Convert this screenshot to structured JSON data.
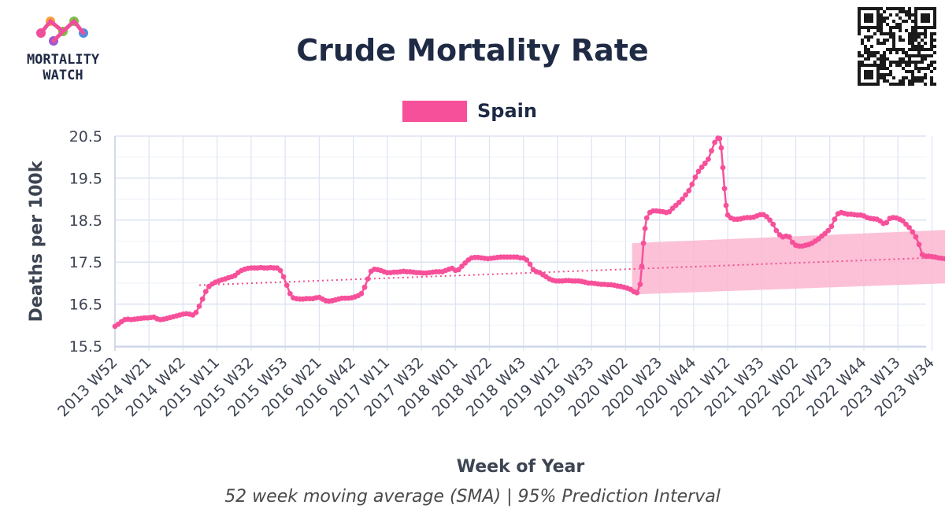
{
  "brand": {
    "line1": "MORTALITY",
    "line2": "WATCH",
    "colors": [
      "#f04e9b",
      "#f7a13a",
      "#7ac142",
      "#4a90e2",
      "#9b59d0"
    ]
  },
  "qr_code": {
    "label": "qr-code"
  },
  "colors": {
    "series": "#f7509a",
    "trend": "#f04e8e",
    "band": "#fbb6d0",
    "grid": "#dde3f3",
    "text": "#1f2a44"
  },
  "chart_data": {
    "type": "line",
    "title": "Crude Mortality Rate",
    "subtitle": "52 week moving average (SMA) | 95% Prediction Interval",
    "xlabel": "Week of Year",
    "ylabel": "Deaths per 100k",
    "ylim": [
      15.3,
      20.6
    ],
    "yticks": [
      15.5,
      16.5,
      17.5,
      18.5,
      19.5,
      20.5
    ],
    "x_range_weeks": [
      0,
      506
    ],
    "xticks": [
      {
        "label": "2013 W52",
        "week": 0
      },
      {
        "label": "2014 W21",
        "week": 21
      },
      {
        "label": "2014 W42",
        "week": 42
      },
      {
        "label": "2015 W11",
        "week": 63
      },
      {
        "label": "2015 W32",
        "week": 84
      },
      {
        "label": "2015 W53",
        "week": 105
      },
      {
        "label": "2016 W21",
        "week": 126
      },
      {
        "label": "2016 W42",
        "week": 147
      },
      {
        "label": "2017 W11",
        "week": 168
      },
      {
        "label": "2017 W32",
        "week": 189
      },
      {
        "label": "2018 W01",
        "week": 210
      },
      {
        "label": "2018 W22",
        "week": 231
      },
      {
        "label": "2018 W43",
        "week": 252
      },
      {
        "label": "2019 W12",
        "week": 273
      },
      {
        "label": "2019 W33",
        "week": 294
      },
      {
        "label": "2020 W02",
        "week": 315
      },
      {
        "label": "2020 W23",
        "week": 336
      },
      {
        "label": "2020 W44",
        "week": 357
      },
      {
        "label": "2021 W12",
        "week": 378
      },
      {
        "label": "2021 W33",
        "week": 399
      },
      {
        "label": "2022 W02",
        "week": 420
      },
      {
        "label": "2022 W23",
        "week": 441
      },
      {
        "label": "2022 W44",
        "week": 462
      },
      {
        "label": "2023 W13",
        "week": 483
      },
      {
        "label": "2023 W34",
        "week": 504
      }
    ],
    "series": [
      {
        "name": "Spain",
        "type": "line",
        "points": [
          [
            0,
            15.97
          ],
          [
            2,
            16.02
          ],
          [
            4,
            16.08
          ],
          [
            6,
            16.13
          ],
          [
            8,
            16.14
          ],
          [
            10,
            16.13
          ],
          [
            12,
            16.14
          ],
          [
            14,
            16.15
          ],
          [
            16,
            16.16
          ],
          [
            18,
            16.17
          ],
          [
            20,
            16.17
          ],
          [
            22,
            16.18
          ],
          [
            24,
            16.19
          ],
          [
            26,
            16.15
          ],
          [
            28,
            16.13
          ],
          [
            30,
            16.14
          ],
          [
            32,
            16.16
          ],
          [
            34,
            16.18
          ],
          [
            36,
            16.2
          ],
          [
            38,
            16.22
          ],
          [
            40,
            16.24
          ],
          [
            42,
            16.26
          ],
          [
            44,
            16.27
          ],
          [
            46,
            16.26
          ],
          [
            48,
            16.24
          ],
          [
            50,
            16.3
          ],
          [
            52,
            16.45
          ],
          [
            54,
            16.62
          ],
          [
            56,
            16.8
          ],
          [
            58,
            16.92
          ],
          [
            60,
            16.98
          ],
          [
            62,
            17.02
          ],
          [
            64,
            17.05
          ],
          [
            66,
            17.08
          ],
          [
            68,
            17.1
          ],
          [
            70,
            17.13
          ],
          [
            72,
            17.15
          ],
          [
            74,
            17.18
          ],
          [
            76,
            17.25
          ],
          [
            78,
            17.3
          ],
          [
            80,
            17.33
          ],
          [
            82,
            17.35
          ],
          [
            84,
            17.36
          ],
          [
            86,
            17.36
          ],
          [
            88,
            17.36
          ],
          [
            90,
            17.37
          ],
          [
            92,
            17.36
          ],
          [
            94,
            17.36
          ],
          [
            96,
            17.37
          ],
          [
            98,
            17.36
          ],
          [
            100,
            17.36
          ],
          [
            102,
            17.3
          ],
          [
            104,
            17.15
          ],
          [
            106,
            16.95
          ],
          [
            108,
            16.75
          ],
          [
            110,
            16.65
          ],
          [
            112,
            16.63
          ],
          [
            114,
            16.62
          ],
          [
            116,
            16.62
          ],
          [
            118,
            16.63
          ],
          [
            120,
            16.63
          ],
          [
            122,
            16.63
          ],
          [
            124,
            16.65
          ],
          [
            126,
            16.66
          ],
          [
            128,
            16.62
          ],
          [
            130,
            16.58
          ],
          [
            132,
            16.57
          ],
          [
            134,
            16.58
          ],
          [
            136,
            16.6
          ],
          [
            138,
            16.62
          ],
          [
            140,
            16.64
          ],
          [
            142,
            16.64
          ],
          [
            144,
            16.64
          ],
          [
            146,
            16.65
          ],
          [
            148,
            16.67
          ],
          [
            150,
            16.7
          ],
          [
            152,
            16.75
          ],
          [
            154,
            16.9
          ],
          [
            156,
            17.1
          ],
          [
            158,
            17.28
          ],
          [
            160,
            17.33
          ],
          [
            162,
            17.32
          ],
          [
            164,
            17.3
          ],
          [
            166,
            17.27
          ],
          [
            168,
            17.25
          ],
          [
            170,
            17.25
          ],
          [
            172,
            17.26
          ],
          [
            174,
            17.26
          ],
          [
            176,
            17.27
          ],
          [
            178,
            17.28
          ],
          [
            180,
            17.27
          ],
          [
            182,
            17.27
          ],
          [
            184,
            17.26
          ],
          [
            186,
            17.25
          ],
          [
            188,
            17.25
          ],
          [
            190,
            17.24
          ],
          [
            192,
            17.24
          ],
          [
            194,
            17.25
          ],
          [
            196,
            17.26
          ],
          [
            198,
            17.27
          ],
          [
            200,
            17.27
          ],
          [
            202,
            17.27
          ],
          [
            204,
            17.3
          ],
          [
            206,
            17.33
          ],
          [
            208,
            17.35
          ],
          [
            210,
            17.3
          ],
          [
            212,
            17.32
          ],
          [
            214,
            17.4
          ],
          [
            216,
            17.48
          ],
          [
            218,
            17.55
          ],
          [
            220,
            17.6
          ],
          [
            222,
            17.61
          ],
          [
            224,
            17.61
          ],
          [
            226,
            17.6
          ],
          [
            228,
            17.59
          ],
          [
            230,
            17.58
          ],
          [
            232,
            17.59
          ],
          [
            234,
            17.6
          ],
          [
            236,
            17.61
          ],
          [
            238,
            17.62
          ],
          [
            240,
            17.62
          ],
          [
            242,
            17.62
          ],
          [
            244,
            17.62
          ],
          [
            246,
            17.62
          ],
          [
            248,
            17.62
          ],
          [
            250,
            17.6
          ],
          [
            252,
            17.6
          ],
          [
            254,
            17.55
          ],
          [
            256,
            17.45
          ],
          [
            258,
            17.32
          ],
          [
            260,
            17.27
          ],
          [
            262,
            17.25
          ],
          [
            264,
            17.2
          ],
          [
            266,
            17.15
          ],
          [
            268,
            17.1
          ],
          [
            270,
            17.07
          ],
          [
            272,
            17.05
          ],
          [
            274,
            17.05
          ],
          [
            276,
            17.05
          ],
          [
            278,
            17.06
          ],
          [
            280,
            17.06
          ],
          [
            282,
            17.05
          ],
          [
            284,
            17.05
          ],
          [
            286,
            17.05
          ],
          [
            288,
            17.04
          ],
          [
            290,
            17.02
          ],
          [
            292,
            17.0
          ],
          [
            294,
            17.0
          ],
          [
            296,
            16.99
          ],
          [
            298,
            16.98
          ],
          [
            300,
            16.97
          ],
          [
            302,
            16.97
          ],
          [
            304,
            16.96
          ],
          [
            306,
            16.96
          ],
          [
            308,
            16.95
          ],
          [
            310,
            16.93
          ],
          [
            312,
            16.92
          ],
          [
            314,
            16.9
          ],
          [
            316,
            16.88
          ],
          [
            318,
            16.85
          ],
          [
            320,
            16.8
          ],
          [
            322,
            16.77
          ],
          [
            324,
            16.97
          ],
          [
            325,
            17.4
          ],
          [
            326,
            17.95
          ],
          [
            327,
            18.3
          ],
          [
            328,
            18.55
          ],
          [
            330,
            18.68
          ],
          [
            332,
            18.72
          ],
          [
            334,
            18.72
          ],
          [
            336,
            18.71
          ],
          [
            338,
            18.7
          ],
          [
            340,
            18.68
          ],
          [
            342,
            18.7
          ],
          [
            344,
            18.78
          ],
          [
            346,
            18.85
          ],
          [
            348,
            18.92
          ],
          [
            350,
            19.0
          ],
          [
            352,
            19.1
          ],
          [
            354,
            19.2
          ],
          [
            356,
            19.35
          ],
          [
            358,
            19.52
          ],
          [
            360,
            19.66
          ],
          [
            362,
            19.76
          ],
          [
            364,
            19.85
          ],
          [
            366,
            19.95
          ],
          [
            368,
            20.15
          ],
          [
            370,
            20.35
          ],
          [
            372,
            20.45
          ],
          [
            373,
            20.44
          ],
          [
            374,
            20.22
          ],
          [
            375,
            19.75
          ],
          [
            376,
            19.25
          ],
          [
            377,
            18.85
          ],
          [
            378,
            18.62
          ],
          [
            380,
            18.55
          ],
          [
            382,
            18.52
          ],
          [
            384,
            18.52
          ],
          [
            386,
            18.53
          ],
          [
            388,
            18.55
          ],
          [
            390,
            18.56
          ],
          [
            392,
            18.56
          ],
          [
            394,
            18.57
          ],
          [
            396,
            18.6
          ],
          [
            398,
            18.63
          ],
          [
            400,
            18.63
          ],
          [
            402,
            18.58
          ],
          [
            404,
            18.5
          ],
          [
            406,
            18.4
          ],
          [
            408,
            18.25
          ],
          [
            410,
            18.15
          ],
          [
            412,
            18.1
          ],
          [
            414,
            18.12
          ],
          [
            416,
            18.1
          ],
          [
            418,
            17.97
          ],
          [
            420,
            17.9
          ],
          [
            422,
            17.88
          ],
          [
            424,
            17.88
          ],
          [
            426,
            17.9
          ],
          [
            428,
            17.92
          ],
          [
            430,
            17.95
          ],
          [
            432,
            18.0
          ],
          [
            434,
            18.05
          ],
          [
            436,
            18.12
          ],
          [
            438,
            18.18
          ],
          [
            440,
            18.25
          ],
          [
            442,
            18.35
          ],
          [
            444,
            18.52
          ],
          [
            446,
            18.65
          ],
          [
            448,
            18.68
          ],
          [
            450,
            18.66
          ],
          [
            452,
            18.64
          ],
          [
            454,
            18.64
          ],
          [
            456,
            18.63
          ],
          [
            458,
            18.62
          ],
          [
            460,
            18.62
          ],
          [
            462,
            18.6
          ],
          [
            464,
            18.56
          ],
          [
            466,
            18.54
          ],
          [
            468,
            18.53
          ],
          [
            470,
            18.52
          ],
          [
            472,
            18.48
          ],
          [
            474,
            18.42
          ],
          [
            476,
            18.44
          ],
          [
            478,
            18.54
          ],
          [
            480,
            18.56
          ],
          [
            482,
            18.55
          ],
          [
            484,
            18.52
          ],
          [
            486,
            18.48
          ],
          [
            488,
            18.4
          ],
          [
            490,
            18.32
          ],
          [
            492,
            18.22
          ],
          [
            494,
            18.1
          ],
          [
            496,
            17.92
          ],
          [
            498,
            17.68
          ],
          [
            500,
            17.64
          ],
          [
            502,
            17.64
          ],
          [
            504,
            17.63
          ],
          [
            506,
            17.62
          ],
          [
            508,
            17.6
          ],
          [
            510,
            17.59
          ],
          [
            512,
            17.58
          ],
          [
            514,
            17.55
          ],
          [
            516,
            17.53
          ]
        ]
      },
      {
        "name": "Trend",
        "type": "dotted-line",
        "points": [
          [
            52,
            16.95
          ],
          [
            516,
            17.62
          ]
        ]
      },
      {
        "name": "95% Prediction Interval",
        "type": "band",
        "points": [
          [
            319,
            16.73,
            17.95
          ],
          [
            516,
            17.0,
            18.27
          ]
        ]
      }
    ],
    "legend": [
      {
        "label": "Spain",
        "placement": "top-center"
      }
    ]
  }
}
